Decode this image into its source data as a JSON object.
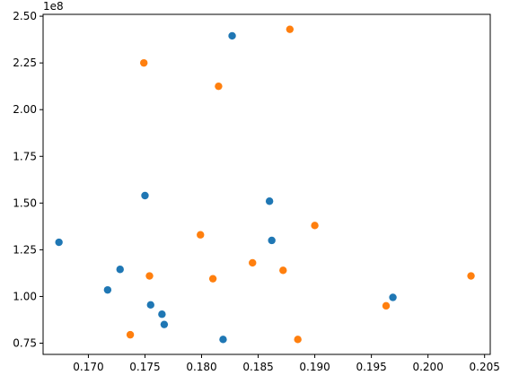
{
  "chart_data": {
    "type": "scatter",
    "title": "",
    "xlabel": "",
    "ylabel": "",
    "y_offset_label": "1e8",
    "xlim": [
      0.166,
      0.2055
    ],
    "ylim": [
      0.69,
      2.51
    ],
    "x_ticks": [
      0.17,
      0.175,
      0.18,
      0.185,
      0.19,
      0.195,
      0.2,
      0.205
    ],
    "x_tick_labels": [
      "0.170",
      "0.175",
      "0.180",
      "0.185",
      "0.190",
      "0.195",
      "0.200",
      "0.205"
    ],
    "y_ticks": [
      0.75,
      1.0,
      1.25,
      1.5,
      1.75,
      2.0,
      2.25,
      2.5
    ],
    "y_tick_labels": [
      "0.75",
      "1.00",
      "1.25",
      "1.50",
      "1.75",
      "2.00",
      "2.25",
      "2.50"
    ],
    "grid": false,
    "legend": false,
    "series": [
      {
        "color": "#1f77b4",
        "points": [
          {
            "x": 0.1674,
            "y": 1.29
          },
          {
            "x": 0.1717,
            "y": 1.035
          },
          {
            "x": 0.1728,
            "y": 1.145
          },
          {
            "x": 0.175,
            "y": 1.54
          },
          {
            "x": 0.1755,
            "y": 0.955
          },
          {
            "x": 0.1765,
            "y": 0.905
          },
          {
            "x": 0.1767,
            "y": 0.85
          },
          {
            "x": 0.1819,
            "y": 0.77
          },
          {
            "x": 0.1827,
            "y": 2.395
          },
          {
            "x": 0.186,
            "y": 1.51
          },
          {
            "x": 0.1862,
            "y": 1.3
          },
          {
            "x": 0.1969,
            "y": 0.995
          }
        ]
      },
      {
        "color": "#ff7f0e",
        "points": [
          {
            "x": 0.1737,
            "y": 0.795
          },
          {
            "x": 0.1749,
            "y": 2.25
          },
          {
            "x": 0.1754,
            "y": 1.11
          },
          {
            "x": 0.1799,
            "y": 1.33
          },
          {
            "x": 0.181,
            "y": 1.095
          },
          {
            "x": 0.1815,
            "y": 2.125
          },
          {
            "x": 0.1845,
            "y": 1.18
          },
          {
            "x": 0.1872,
            "y": 1.14
          },
          {
            "x": 0.1878,
            "y": 2.43
          },
          {
            "x": 0.1885,
            "y": 0.77
          },
          {
            "x": 0.19,
            "y": 1.38
          },
          {
            "x": 0.1963,
            "y": 0.95
          },
          {
            "x": 0.2038,
            "y": 1.11
          }
        ]
      }
    ]
  }
}
